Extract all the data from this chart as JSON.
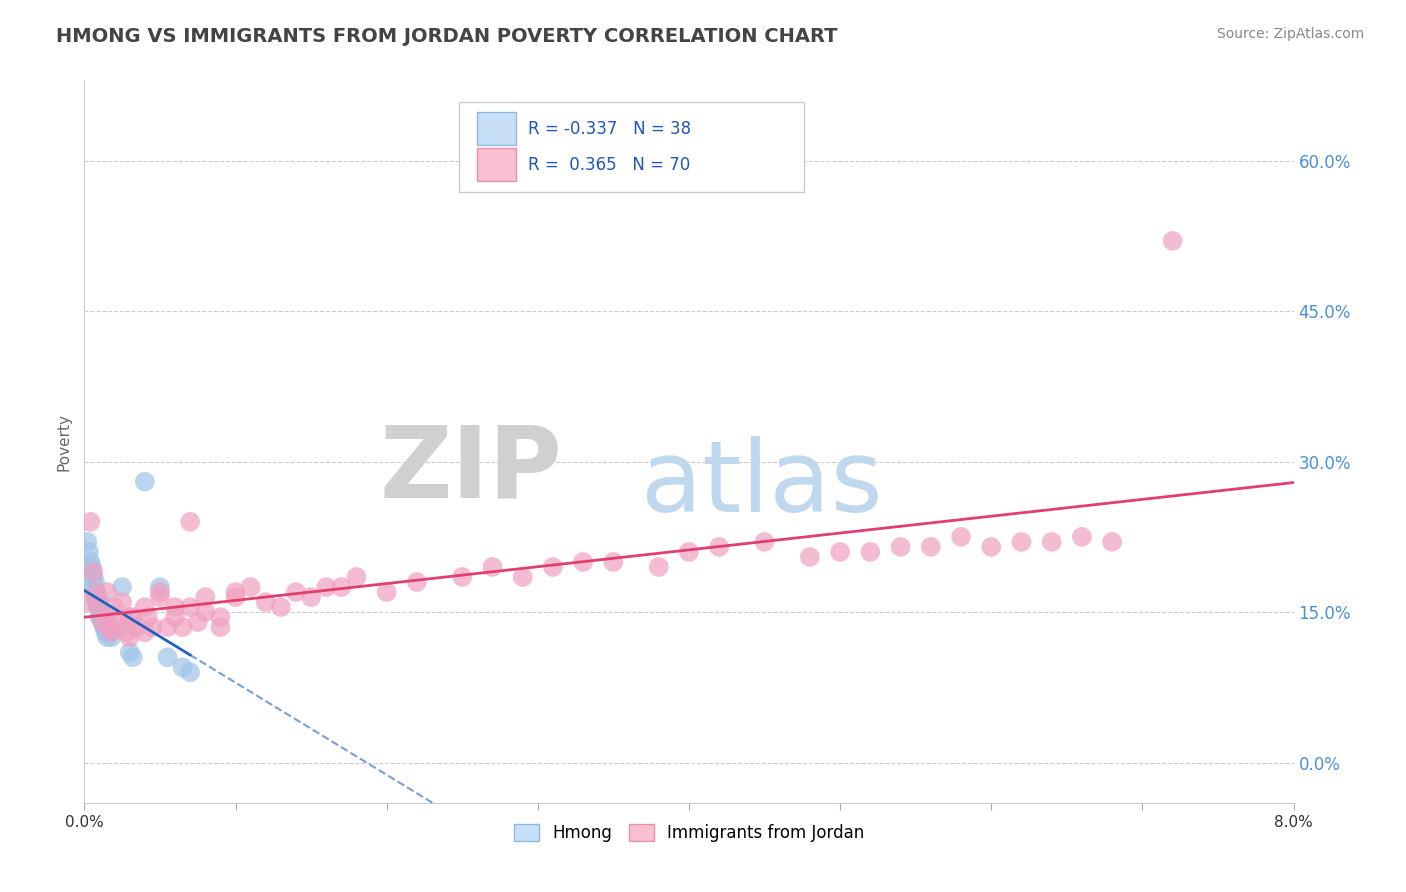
{
  "title": "HMONG VS IMMIGRANTS FROM JORDAN POVERTY CORRELATION CHART",
  "source_text": "Source: ZipAtlas.com",
  "ylabel": "Poverty",
  "xlim": [
    0.0,
    0.08
  ],
  "ylim": [
    -0.04,
    0.68
  ],
  "xticks": [
    0.0,
    0.01,
    0.02,
    0.03,
    0.04,
    0.05,
    0.06,
    0.07,
    0.08
  ],
  "xticklabels": [
    "0.0%",
    "",
    "",
    "",
    "",
    "",
    "",
    "",
    "8.0%"
  ],
  "yticks": [
    0.0,
    0.15,
    0.3,
    0.45,
    0.6
  ],
  "grid_color": "#cccccc",
  "background_color": "#ffffff",
  "blue_color": "#a0c4e8",
  "pink_color": "#f0a0c0",
  "blue_line_color": "#2060c0",
  "pink_line_color": "#e04070",
  "R_blue": -0.337,
  "N_blue": 38,
  "R_pink": 0.365,
  "N_pink": 70,
  "watermark_zip": "ZIP",
  "watermark_atlas": "atlas",
  "legend_blue_label": "Hmong",
  "legend_pink_label": "Immigrants from Jordan",
  "blue_points_x": [
    0.0002,
    0.0003,
    0.0004,
    0.0005,
    0.0005,
    0.0006,
    0.0006,
    0.0007,
    0.0007,
    0.0007,
    0.0008,
    0.0008,
    0.0009,
    0.0009,
    0.001,
    0.001,
    0.001,
    0.001,
    0.0011,
    0.0011,
    0.0012,
    0.0012,
    0.0013,
    0.0014,
    0.0014,
    0.0015,
    0.0015,
    0.0016,
    0.0017,
    0.0018,
    0.0025,
    0.003,
    0.0032,
    0.004,
    0.005,
    0.0055,
    0.0065,
    0.007
  ],
  "blue_points_y": [
    0.22,
    0.21,
    0.2,
    0.195,
    0.19,
    0.185,
    0.175,
    0.17,
    0.165,
    0.18,
    0.17,
    0.16,
    0.165,
    0.155,
    0.155,
    0.15,
    0.145,
    0.16,
    0.15,
    0.145,
    0.145,
    0.14,
    0.135,
    0.135,
    0.13,
    0.125,
    0.14,
    0.13,
    0.13,
    0.125,
    0.175,
    0.11,
    0.105,
    0.28,
    0.175,
    0.105,
    0.095,
    0.09
  ],
  "pink_points_x": [
    0.0002,
    0.0004,
    0.0006,
    0.0008,
    0.001,
    0.0012,
    0.0014,
    0.0015,
    0.0016,
    0.0018,
    0.002,
    0.002,
    0.0022,
    0.0025,
    0.0028,
    0.003,
    0.003,
    0.0032,
    0.0035,
    0.004,
    0.004,
    0.0042,
    0.0045,
    0.005,
    0.005,
    0.0055,
    0.006,
    0.006,
    0.0065,
    0.007,
    0.007,
    0.0075,
    0.008,
    0.008,
    0.009,
    0.009,
    0.01,
    0.01,
    0.011,
    0.012,
    0.013,
    0.014,
    0.015,
    0.016,
    0.017,
    0.018,
    0.02,
    0.022,
    0.025,
    0.027,
    0.029,
    0.031,
    0.033,
    0.035,
    0.038,
    0.04,
    0.042,
    0.045,
    0.048,
    0.05,
    0.052,
    0.054,
    0.056,
    0.058,
    0.06,
    0.062,
    0.064,
    0.066,
    0.068,
    0.072
  ],
  "pink_points_y": [
    0.16,
    0.24,
    0.19,
    0.17,
    0.155,
    0.14,
    0.145,
    0.17,
    0.135,
    0.13,
    0.155,
    0.14,
    0.135,
    0.16,
    0.13,
    0.145,
    0.125,
    0.145,
    0.135,
    0.13,
    0.155,
    0.145,
    0.135,
    0.165,
    0.17,
    0.135,
    0.145,
    0.155,
    0.135,
    0.155,
    0.24,
    0.14,
    0.165,
    0.15,
    0.145,
    0.135,
    0.17,
    0.165,
    0.175,
    0.16,
    0.155,
    0.17,
    0.165,
    0.175,
    0.175,
    0.185,
    0.17,
    0.18,
    0.185,
    0.195,
    0.185,
    0.195,
    0.2,
    0.2,
    0.195,
    0.21,
    0.215,
    0.22,
    0.205,
    0.21,
    0.21,
    0.215,
    0.215,
    0.225,
    0.215,
    0.22,
    0.22,
    0.225,
    0.22,
    0.52
  ]
}
